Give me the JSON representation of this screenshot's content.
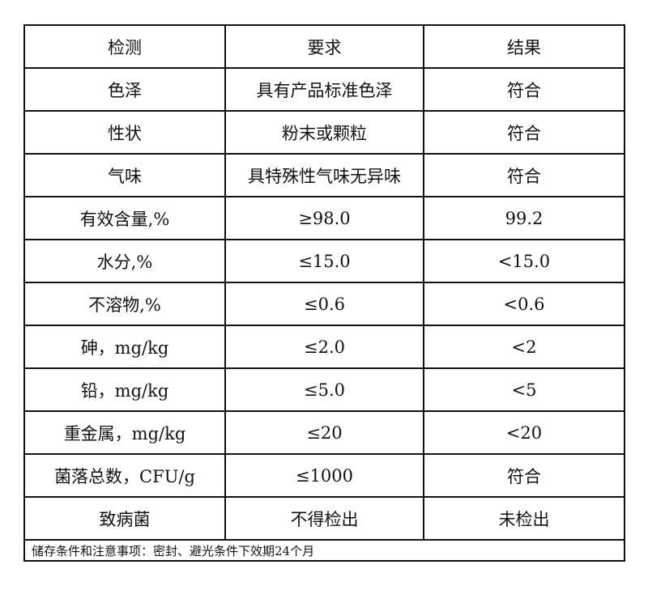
{
  "headers": [
    "检测",
    "要求",
    "结果"
  ],
  "rows": [
    [
      "色泽",
      "具有产品标准色泽",
      "符合"
    ],
    [
      "性状",
      "粉末或颗粒",
      "符合"
    ],
    [
      "气味",
      "具特殊性气味无异味",
      "符合"
    ],
    [
      "有效含量,%",
      "≥98.0",
      "99.2"
    ],
    [
      "水分,%",
      "≤15.0",
      "<15.0"
    ],
    [
      "不溶物,%",
      "≤0.6",
      "<0.6"
    ],
    [
      "砷，mg/kg",
      "≤2.0",
      "<2"
    ],
    [
      "铅，mg/kg",
      "≤5.0",
      "<5"
    ],
    [
      "重金属，mg/kg",
      "≤20",
      "<20"
    ],
    [
      "菌落总数，CFU/g",
      "≤1000",
      "符合"
    ],
    [
      "致病菌",
      "不得检出",
      "未检出"
    ]
  ],
  "footer": "储存条件和注意事项：密封、避光条件下效期24个月"
}
